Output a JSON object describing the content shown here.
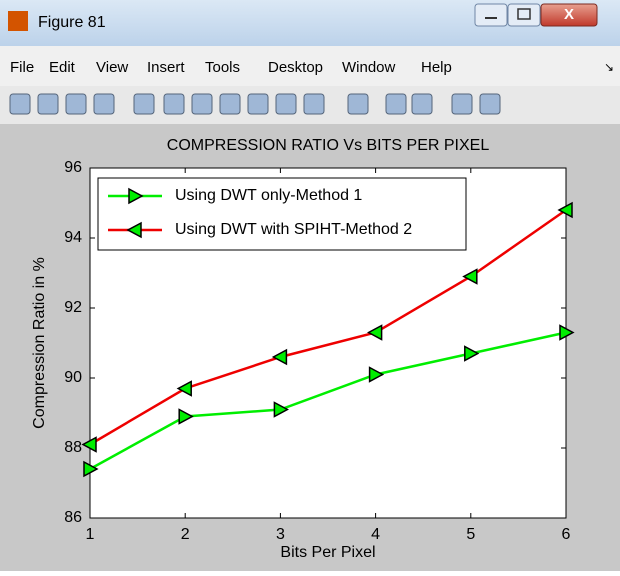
{
  "window": {
    "title": "Figure 81",
    "menu": [
      "File",
      "Edit",
      "View",
      "Insert",
      "Tools",
      "Desktop",
      "Window",
      "Help"
    ]
  },
  "chart_data": {
    "type": "line",
    "title": "COMPRESSION RATIO Vs BITS PER PIXEL",
    "x_label": "Bits Per Pixel",
    "y_label": "Compression Ratio in %",
    "x": [
      1,
      2,
      3,
      4,
      5,
      6
    ],
    "series": [
      {
        "name": "Using DWT only-Method 1",
        "color": "#00ee00",
        "marker": "triangle-right",
        "values": [
          87.4,
          88.9,
          89.1,
          90.1,
          90.7,
          91.3
        ]
      },
      {
        "name": "Using DWT with SPIHT-Method 2",
        "color": "#ee0000",
        "marker": "triangle-left",
        "values": [
          88.1,
          89.7,
          90.6,
          91.3,
          92.9,
          94.8
        ]
      }
    ],
    "xlim": [
      1,
      6
    ],
    "xticks": [
      1,
      2,
      3,
      4,
      5,
      6
    ],
    "ylim": [
      86,
      96
    ],
    "yticks": [
      86,
      88,
      90,
      92,
      94,
      96
    ],
    "legend": "upper left",
    "grid": false
  }
}
